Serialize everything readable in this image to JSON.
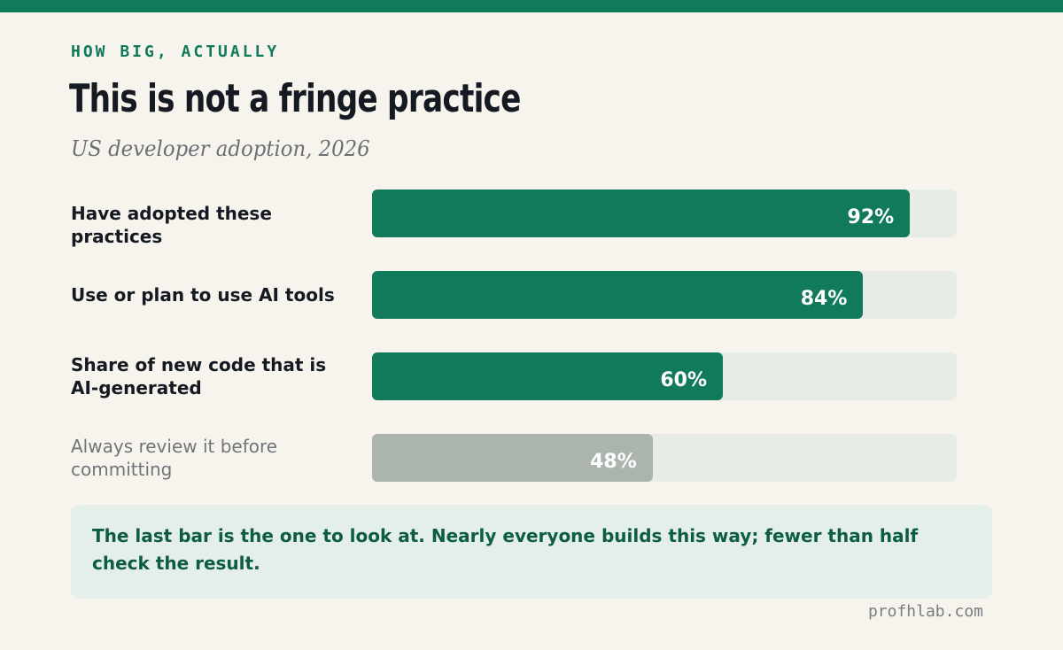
{
  "chart_data": {
    "type": "hbar",
    "eyebrow": "HOW BIG, ACTUALLY",
    "title": "This is not a fringe practice",
    "subtitle": "US developer adoption, 2026",
    "categories": [
      "Have adopted these practices",
      "Use or plan to use AI tools",
      "Share of new code that is AI-generated",
      "Always review it before committing"
    ],
    "values": [
      92,
      84,
      60,
      48
    ],
    "value_labels": [
      "92%",
      "84%",
      "60%",
      "48%"
    ],
    "colors": [
      "#107a5b",
      "#107a5b",
      "#107a5b",
      "#abb5ae"
    ],
    "xlim": [
      0,
      100
    ],
    "note": "The last bar is the one to look at. Nearly everyone builds this way; fewer than half check the result.",
    "footer": "profhlab.com"
  }
}
